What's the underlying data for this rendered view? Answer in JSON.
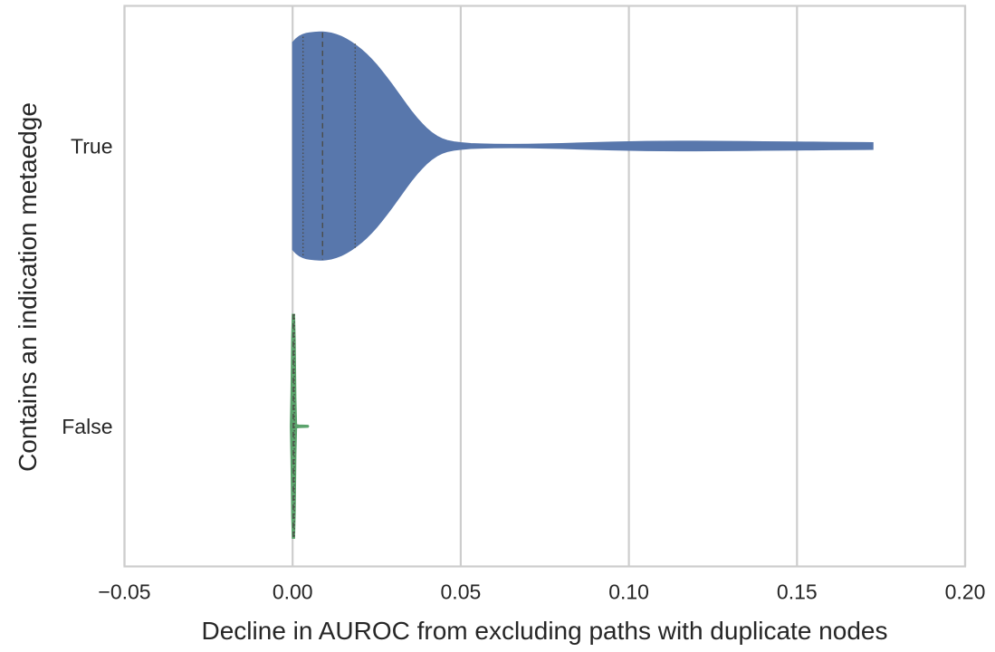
{
  "chart_data": {
    "type": "violin",
    "orientation": "horizontal",
    "title": "",
    "xlabel": "Decline in AUROC from excluding paths with duplicate nodes",
    "ylabel": "Contains an indication metaedge",
    "x_range": [
      -0.05,
      0.2
    ],
    "x_ticks": {
      "values": [
        -0.05,
        0.0,
        0.05,
        0.1,
        0.15,
        0.2
      ],
      "labels": [
        "−0.05",
        "0.00",
        "0.05",
        "0.10",
        "0.15",
        "0.20"
      ]
    },
    "grid": "vertical-only",
    "legend": "none",
    "colors": {
      "grid_line": "#cdcdcd",
      "frame": "#cdcdcd",
      "text": "#262626",
      "quartile_line": "#4a4a44",
      "background": "#ffffff"
    },
    "violin_max_half_width": 0.4,
    "categories": [
      {
        "label": "True",
        "position": 0,
        "color": "#5877ac",
        "support": [
          0.0,
          0.1726
        ],
        "quartiles": {
          "q1": 0.003,
          "median": 0.009,
          "q3": 0.019
        },
        "profile": [
          [
            0.0,
            0.37
          ],
          [
            0.001,
            0.383
          ],
          [
            0.002,
            0.392
          ],
          [
            0.003,
            0.398
          ],
          [
            0.004,
            0.402
          ],
          [
            0.005,
            0.404
          ],
          [
            0.0065,
            0.406
          ],
          [
            0.008,
            0.407
          ],
          [
            0.009,
            0.407
          ],
          [
            0.01,
            0.406
          ],
          [
            0.0115,
            0.403
          ],
          [
            0.013,
            0.398
          ],
          [
            0.0145,
            0.391
          ],
          [
            0.016,
            0.382
          ],
          [
            0.0175,
            0.371
          ],
          [
            0.019,
            0.358
          ],
          [
            0.0205,
            0.344
          ],
          [
            0.022,
            0.328
          ],
          [
            0.0235,
            0.31
          ],
          [
            0.025,
            0.29
          ],
          [
            0.0265,
            0.268
          ],
          [
            0.028,
            0.245
          ],
          [
            0.0295,
            0.221
          ],
          [
            0.031,
            0.196
          ],
          [
            0.0325,
            0.171
          ],
          [
            0.034,
            0.146
          ],
          [
            0.0355,
            0.122
          ],
          [
            0.037,
            0.1
          ],
          [
            0.0385,
            0.08
          ],
          [
            0.04,
            0.062
          ],
          [
            0.0415,
            0.047
          ],
          [
            0.043,
            0.035
          ],
          [
            0.0445,
            0.026
          ],
          [
            0.046,
            0.02
          ],
          [
            0.048,
            0.015
          ],
          [
            0.05,
            0.012
          ],
          [
            0.053,
            0.009
          ],
          [
            0.056,
            0.0075
          ],
          [
            0.06,
            0.0065
          ],
          [
            0.065,
            0.006
          ],
          [
            0.07,
            0.0065
          ],
          [
            0.075,
            0.0075
          ],
          [
            0.08,
            0.009
          ],
          [
            0.085,
            0.011
          ],
          [
            0.09,
            0.0125
          ],
          [
            0.095,
            0.014
          ],
          [
            0.1,
            0.0155
          ],
          [
            0.105,
            0.0165
          ],
          [
            0.11,
            0.017
          ],
          [
            0.115,
            0.0175
          ],
          [
            0.12,
            0.0175
          ],
          [
            0.125,
            0.017
          ],
          [
            0.13,
            0.0165
          ],
          [
            0.135,
            0.016
          ],
          [
            0.14,
            0.0155
          ],
          [
            0.145,
            0.015
          ],
          [
            0.15,
            0.0145
          ],
          [
            0.155,
            0.014
          ],
          [
            0.16,
            0.0135
          ],
          [
            0.165,
            0.013
          ],
          [
            0.17,
            0.0125
          ],
          [
            0.1726,
            0.012
          ]
        ],
        "quartile_lines": [
          {
            "x": 0.0031,
            "style": "dotted",
            "half_extent": 0.39
          },
          {
            "x": 0.0089,
            "style": "dashed",
            "half_extent": 0.405
          },
          {
            "x": 0.0186,
            "style": "dotted",
            "half_extent": 0.365
          }
        ]
      },
      {
        "label": "False",
        "position": 1,
        "color": "#5ba36c",
        "support": [
          -0.0007,
          0.0048
        ],
        "quartiles": {
          "q1": 0.0001,
          "median": 0.0002,
          "q3": 0.0005
        },
        "profile": [
          [
            -0.0007,
            0.003
          ],
          [
            -0.0005,
            0.12
          ],
          [
            -0.0003,
            0.32
          ],
          [
            -0.0001,
            0.4
          ],
          [
            0.0006,
            0.4
          ],
          [
            0.0008,
            0.3
          ],
          [
            0.001,
            0.1
          ],
          [
            0.0012,
            0.006
          ],
          [
            0.0018,
            0.005
          ],
          [
            0.0028,
            0.0045
          ],
          [
            0.0038,
            0.004
          ],
          [
            0.0046,
            0.0035
          ],
          [
            0.0048,
            0.0
          ]
        ],
        "quartile_lines": [
          {
            "x": 0.0002,
            "style": "dashed",
            "half_extent": 0.4
          },
          {
            "x": 0.0005,
            "style": "dotted",
            "half_extent": 0.4
          }
        ]
      }
    ]
  }
}
